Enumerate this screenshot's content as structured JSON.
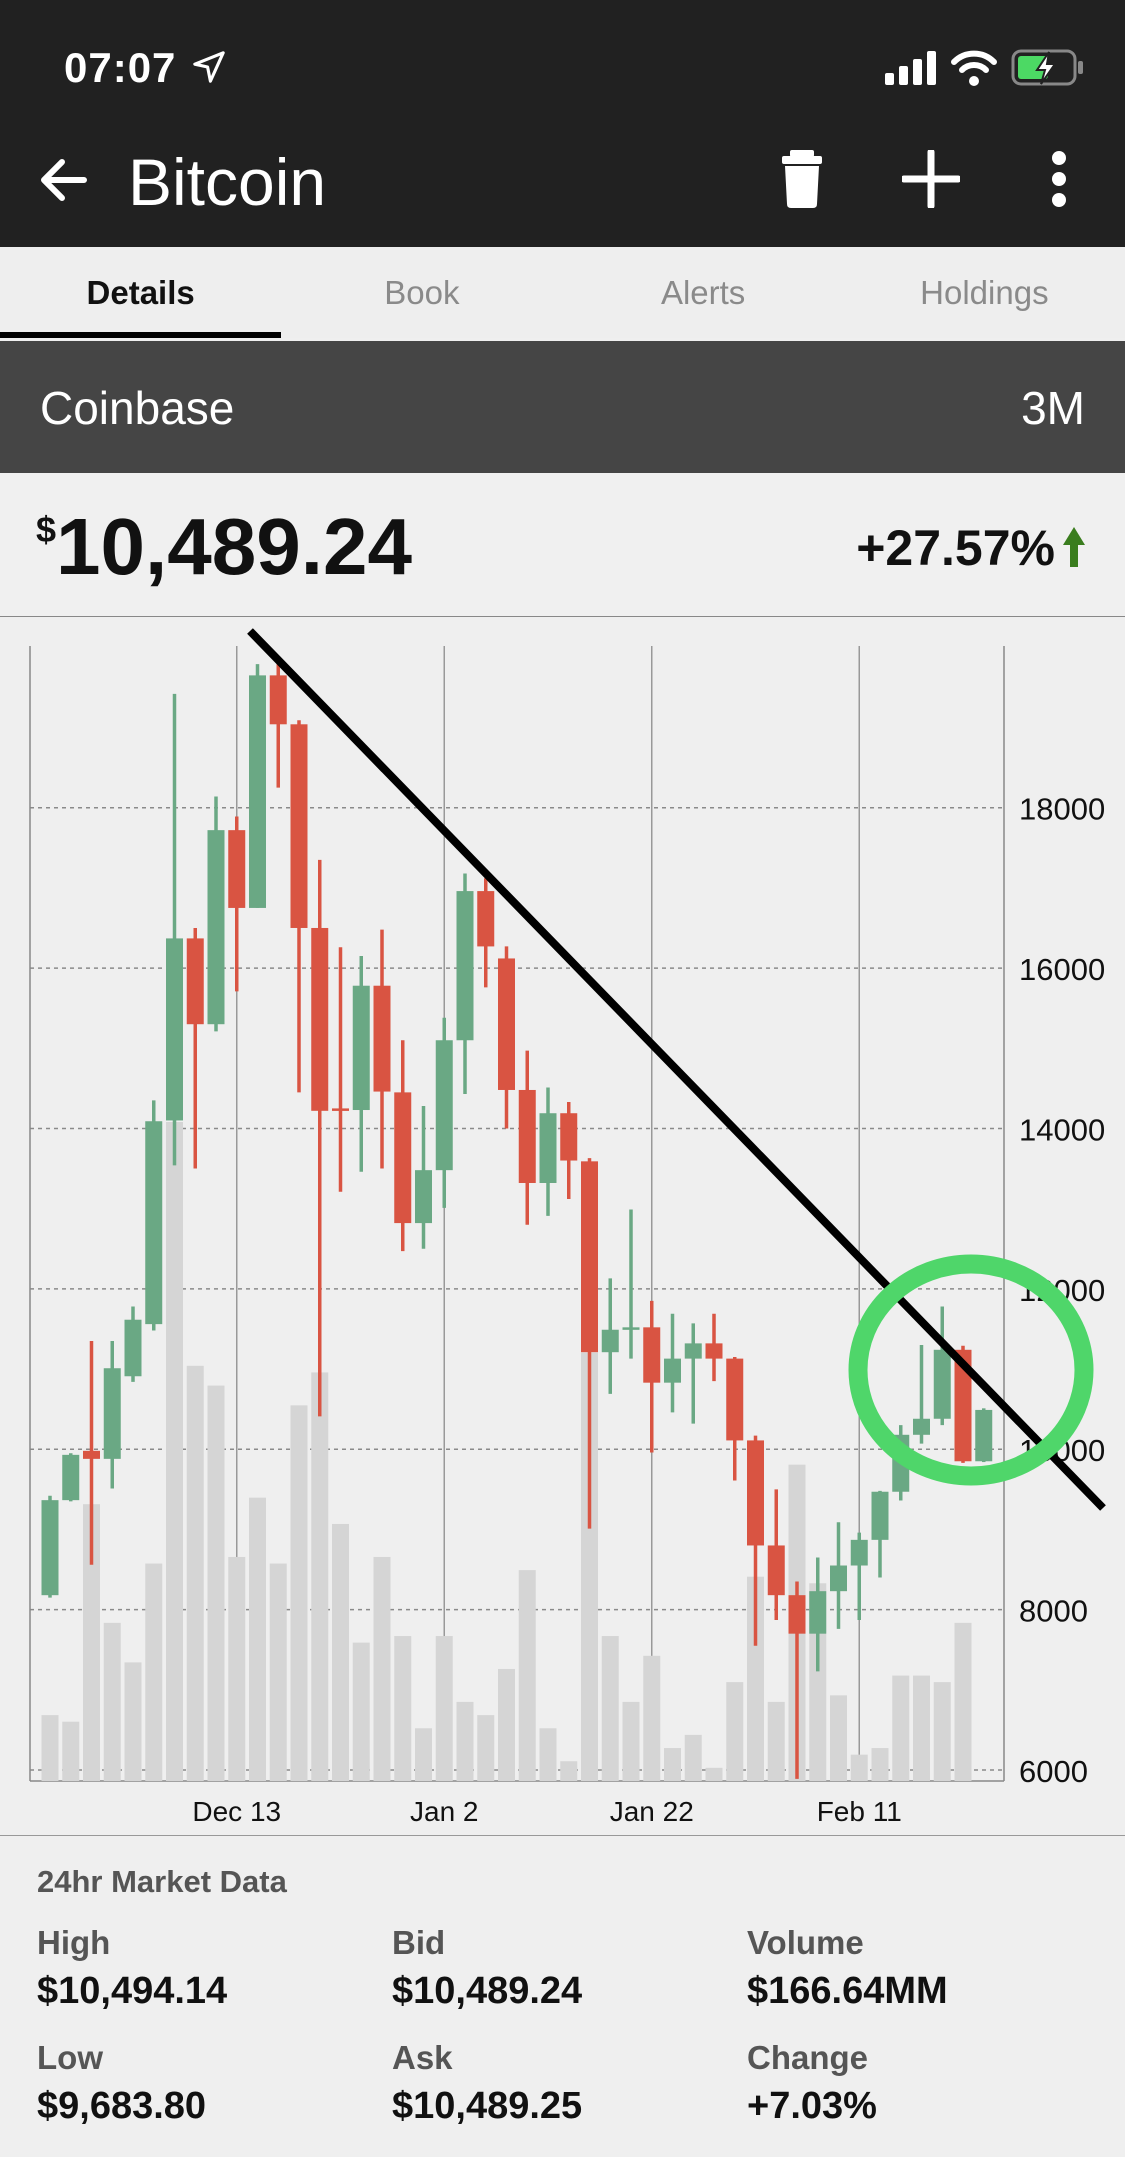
{
  "status_bar": {
    "time": "07:07",
    "icons": [
      "location-arrow-icon",
      "signal-icon",
      "wifi-icon",
      "battery-charging-icon"
    ],
    "battery_color": "#4cd964"
  },
  "header": {
    "title": "Bitcoin",
    "icons": [
      "back-arrow-icon",
      "trash-icon",
      "plus-icon",
      "more-vertical-icon"
    ]
  },
  "tabs": [
    {
      "label": "Details",
      "active": true
    },
    {
      "label": "Book",
      "active": false
    },
    {
      "label": "Alerts",
      "active": false
    },
    {
      "label": "Holdings",
      "active": false
    }
  ],
  "exchange": {
    "name": "Coinbase",
    "range": "3M"
  },
  "quote": {
    "currency": "$",
    "price": "10,489.24",
    "change": "+27.57%",
    "direction": "up",
    "up_color": "#3a7d1e"
  },
  "chart_data": {
    "type": "candlestick",
    "title": "",
    "xlabel": "",
    "ylabel": "",
    "ylim": [
      6000,
      19900
    ],
    "yticks": [
      "6000",
      "8000",
      "10000",
      "12000",
      "14000",
      "16000",
      "18000"
    ],
    "xticks": [
      "Dec 13",
      "Jan 2",
      "Jan 22",
      "Feb 11"
    ],
    "grid": true,
    "colors": {
      "up": "#6aa884",
      "down": "#d95442",
      "volume": "#d5d5d5"
    },
    "dates": [
      "Nov 25",
      "Nov 27",
      "Nov 29",
      "Dec 1",
      "Dec 3",
      "Dec 5",
      "Dec 7",
      "Dec 9",
      "Dec 11",
      "Dec 13",
      "Dec 15",
      "Dec 17",
      "Dec 19",
      "Dec 21",
      "Dec 23",
      "Dec 25",
      "Dec 27",
      "Dec 29",
      "Dec 31",
      "Jan 2",
      "Jan 4",
      "Jan 6",
      "Jan 8",
      "Jan 10",
      "Jan 12",
      "Jan 14",
      "Jan 16",
      "Jan 18",
      "Jan 20",
      "Jan 22",
      "Jan 24",
      "Jan 26",
      "Jan 28",
      "Jan 30",
      "Feb 1",
      "Feb 3",
      "Feb 5",
      "Feb 7",
      "Feb 9",
      "Feb 11",
      "Feb 13",
      "Feb 15",
      "Feb 17",
      "Feb 19",
      "Feb 21",
      "Feb 23"
    ],
    "ohlc": [
      [
        8180,
        9420,
        8150,
        9365
      ],
      [
        9365,
        9950,
        9350,
        9930
      ],
      [
        9980,
        11350,
        8560,
        9880
      ],
      [
        9880,
        11350,
        9510,
        11010
      ],
      [
        10910,
        11780,
        10840,
        11615
      ],
      [
        11560,
        14350,
        11480,
        14090
      ],
      [
        14100,
        19420,
        13540,
        16370
      ],
      [
        16370,
        16500,
        13500,
        15300
      ],
      [
        15300,
        18140,
        15210,
        17720
      ],
      [
        17720,
        17890,
        15710,
        16750
      ],
      [
        16750,
        19790,
        16750,
        19650
      ],
      [
        19650,
        19790,
        18250,
        19040
      ],
      [
        19040,
        19090,
        14450,
        16500
      ],
      [
        16500,
        17350,
        10410,
        14220
      ],
      [
        14250,
        16260,
        13210,
        14220
      ],
      [
        14230,
        16150,
        13460,
        15780
      ],
      [
        15780,
        16480,
        13500,
        14460
      ],
      [
        14450,
        15100,
        12470,
        12820
      ],
      [
        12820,
        14280,
        12500,
        13480
      ],
      [
        13480,
        15380,
        13010,
        15100
      ],
      [
        15100,
        17180,
        14430,
        16960
      ],
      [
        16960,
        17120,
        15760,
        16270
      ],
      [
        16120,
        16270,
        14000,
        14480
      ],
      [
        14480,
        14970,
        12800,
        13320
      ],
      [
        13320,
        14510,
        12910,
        14190
      ],
      [
        14190,
        14330,
        13120,
        13600
      ],
      [
        13590,
        13630,
        9010,
        11210
      ],
      [
        11210,
        12130,
        10690,
        11490
      ],
      [
        11500,
        12990,
        11130,
        11520
      ],
      [
        11520,
        11850,
        9960,
        10830
      ],
      [
        10830,
        11690,
        10460,
        11130
      ],
      [
        11130,
        11570,
        10320,
        11320
      ],
      [
        11320,
        11690,
        10850,
        11130
      ],
      [
        11130,
        11150,
        9610,
        10110
      ],
      [
        10110,
        10170,
        7550,
        8800
      ],
      [
        8800,
        9500,
        7870,
        8180
      ],
      [
        8180,
        8350,
        5890,
        7700
      ],
      [
        7700,
        8650,
        7230,
        8230
      ],
      [
        8230,
        9090,
        7760,
        8550
      ],
      [
        8550,
        8960,
        7870,
        8870
      ],
      [
        8870,
        9480,
        8400,
        9470
      ],
      [
        9470,
        10300,
        9360,
        10180
      ],
      [
        10180,
        11300,
        10070,
        10380
      ],
      [
        10380,
        11780,
        10300,
        11240
      ],
      [
        11240,
        11290,
        9830,
        9850
      ],
      [
        9850,
        10510,
        9840,
        10490
      ]
    ],
    "volume_relative": [
      10,
      9,
      42,
      24,
      18,
      33,
      100,
      63,
      60,
      34,
      43,
      33,
      57,
      62,
      39,
      21,
      34,
      22,
      8,
      22,
      12,
      10,
      17,
      32,
      8,
      3,
      65,
      22,
      12,
      19,
      5,
      7,
      2,
      15,
      31,
      12,
      48,
      30,
      13,
      4,
      5,
      16,
      16,
      15,
      24,
      0
    ],
    "annotations": [
      {
        "type": "trendline",
        "from": [
          "Dec 11",
          19950
        ],
        "to": [
          "after Feb 23",
          8600
        ],
        "color": "#000000"
      },
      {
        "type": "circle",
        "around": [
          "Feb 17",
          "Feb 23"
        ],
        "color": "#4fd66a"
      }
    ]
  },
  "market_data": {
    "title": "24hr Market Data",
    "items": [
      {
        "label": "High",
        "value": "$10,494.14"
      },
      {
        "label": "Bid",
        "value": "$10,489.24"
      },
      {
        "label": "Volume",
        "value": "$166.64MM"
      },
      {
        "label": "Low",
        "value": "$9,683.80"
      },
      {
        "label": "Ask",
        "value": "$10,489.25"
      },
      {
        "label": "Change",
        "value": "+7.03%"
      }
    ]
  }
}
